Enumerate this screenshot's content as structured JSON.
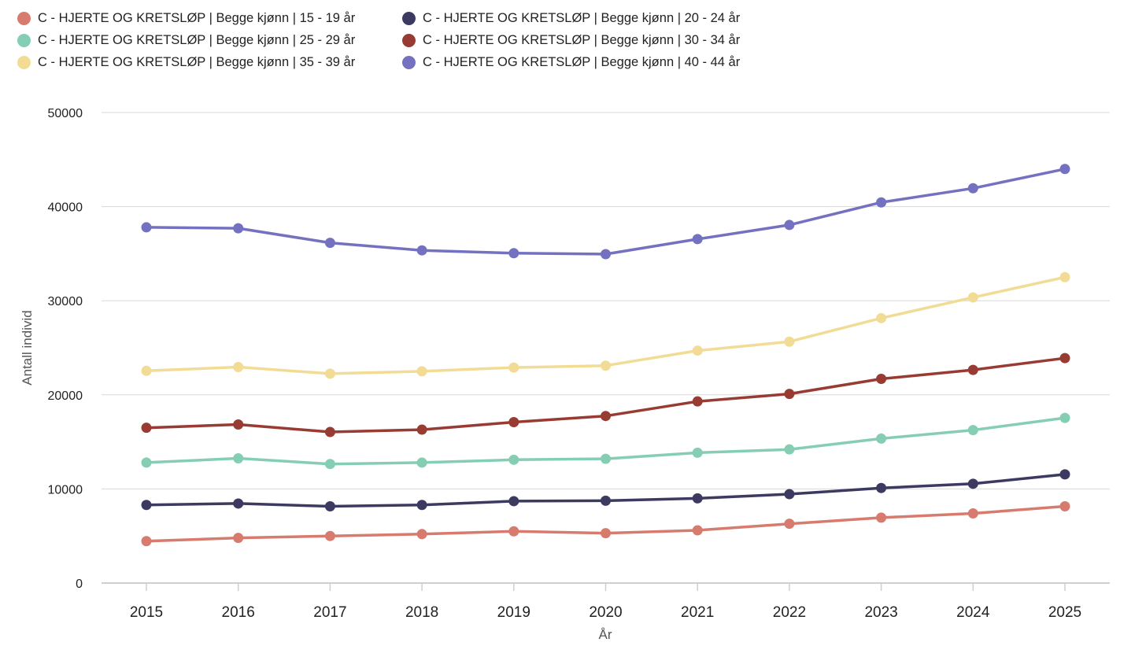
{
  "chart_data": {
    "type": "line",
    "title": "",
    "xlabel": "År",
    "ylabel": "Antall individ",
    "ylim": [
      0,
      50000
    ],
    "yticks": [
      "0",
      "10000",
      "20000",
      "30000",
      "40000",
      "50000"
    ],
    "x": [
      "2015",
      "2016",
      "2017",
      "2018",
      "2019",
      "2020",
      "2021",
      "2022",
      "2023",
      "2024",
      "2025"
    ],
    "grid": true,
    "legend_position": "top-left",
    "series": [
      {
        "name": "C - HJERTE OG KRETSLØP | Begge kjønn | 15 - 19 år",
        "color": "#d77b6e",
        "values": [
          4450,
          4800,
          5000,
          5200,
          5500,
          5300,
          5600,
          6300,
          6950,
          7400,
          8150
        ]
      },
      {
        "name": "C - HJERTE OG KRETSLØP | Begge kjønn | 20 - 24 år",
        "color": "#3d3a62",
        "values": [
          8300,
          8450,
          8150,
          8300,
          8700,
          8750,
          9000,
          9450,
          10100,
          10550,
          11550
        ]
      },
      {
        "name": "C - HJERTE OG KRETSLØP | Begge kjønn | 25 - 29 år",
        "color": "#85ceb3",
        "values": [
          12800,
          13250,
          12650,
          12800,
          13100,
          13200,
          13850,
          14200,
          15350,
          16250,
          17550
        ]
      },
      {
        "name": "C - HJERTE OG KRETSLØP | Begge kjønn | 30 - 34 år",
        "color": "#973b33",
        "values": [
          16500,
          16850,
          16050,
          16300,
          17100,
          17750,
          19300,
          20100,
          21700,
          22650,
          23900
        ]
      },
      {
        "name": "C - HJERTE OG KRETSLØP | Begge kjønn | 35 - 39 år",
        "color": "#f2dc95",
        "values": [
          22550,
          22950,
          22250,
          22500,
          22900,
          23100,
          24700,
          25650,
          28150,
          30350,
          32500
        ]
      },
      {
        "name": "C - HJERTE OG KRETSLØP | Begge kjønn | 40 - 44 år",
        "color": "#7471c1",
        "values": [
          37800,
          37700,
          36150,
          35350,
          35050,
          34950,
          36550,
          38050,
          40450,
          41950,
          44000
        ]
      }
    ]
  }
}
